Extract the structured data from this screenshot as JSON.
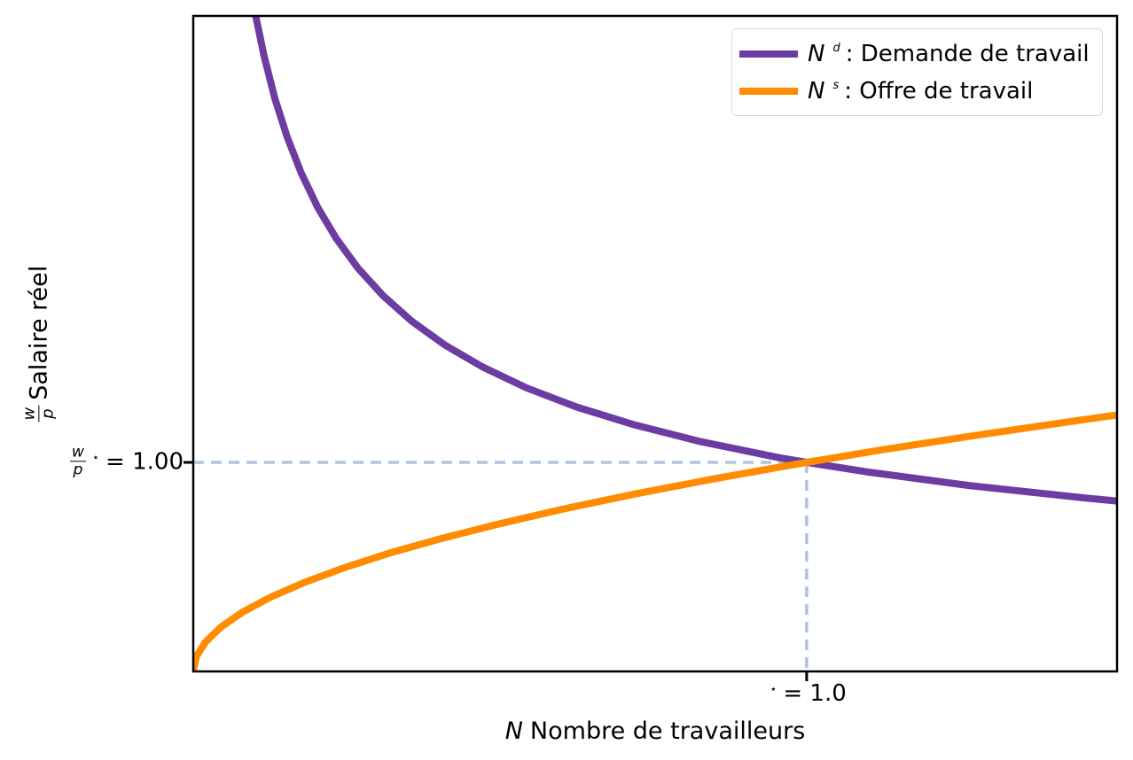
{
  "figure": {
    "background": "#ffffff",
    "text_color": "#000000"
  },
  "axes": {
    "xlabel": {
      "var": "N",
      "text": "Nombre de travailleurs"
    },
    "ylabel": {
      "frac_num": "w",
      "frac_den": "p",
      "text": "Salaire réel"
    },
    "xtick": {
      "sup": "⋆",
      "text": "= 1.0"
    },
    "ytick": {
      "frac_num": "w",
      "frac_den": "p",
      "sup": "⋆",
      "text": "= 1.00"
    }
  },
  "legend": {
    "border_color": "#d8d8d8",
    "entries": [
      {
        "var": "N",
        "sup": "d",
        "text": ": Demande de travail",
        "color": "#6d3ca2"
      },
      {
        "var": "N",
        "sup": "s",
        "text": ": Offre de travail",
        "color": "#ff8c00"
      }
    ]
  },
  "chart_data": {
    "type": "line",
    "title": "",
    "xlabel": "N Nombre de travailleurs",
    "ylabel": "w/p Salaire réel",
    "xlim": [
      0,
      1.506
    ],
    "ylim": [
      0,
      3.136
    ],
    "grid": false,
    "legend_position": "upper right",
    "xtick_labels": [
      "⋆ = 1.0"
    ],
    "ytick_labels": [
      "w/p⋆ = 1.00"
    ],
    "equilibrium": {
      "N_star": 1.0,
      "w_over_p_star": 1.0
    },
    "guide_color": "#b0c4de",
    "line_width": 8,
    "series": [
      {
        "name": "Nᵈ : Demande de travail",
        "color": "#6d3ca2",
        "points": [
          [
            0.098,
            3.19
          ],
          [
            0.115,
            2.949
          ],
          [
            0.133,
            2.742
          ],
          [
            0.153,
            2.557
          ],
          [
            0.176,
            2.384
          ],
          [
            0.203,
            2.219
          ],
          [
            0.233,
            2.072
          ],
          [
            0.269,
            1.928
          ],
          [
            0.309,
            1.799
          ],
          [
            0.356,
            1.676
          ],
          [
            0.41,
            1.562
          ],
          [
            0.472,
            1.456
          ],
          [
            0.543,
            1.357
          ],
          [
            0.625,
            1.265
          ],
          [
            0.72,
            1.179
          ],
          [
            0.828,
            1.099
          ],
          [
            0.953,
            1.024
          ],
          [
            1.0,
            1.0
          ],
          [
            1.097,
            0.955
          ],
          [
            1.263,
            0.89
          ],
          [
            1.453,
            0.83
          ],
          [
            1.506,
            0.815
          ]
        ]
      },
      {
        "name": "Nˢ : Offre de travail",
        "color": "#ff8c00",
        "points": [
          [
            0,
            0
          ],
          [
            0.005,
            0.071
          ],
          [
            0.02,
            0.141
          ],
          [
            0.045,
            0.212
          ],
          [
            0.08,
            0.283
          ],
          [
            0.125,
            0.354
          ],
          [
            0.18,
            0.424
          ],
          [
            0.245,
            0.495
          ],
          [
            0.32,
            0.566
          ],
          [
            0.405,
            0.636
          ],
          [
            0.5,
            0.707
          ],
          [
            0.605,
            0.778
          ],
          [
            0.72,
            0.849
          ],
          [
            0.845,
            0.919
          ],
          [
            0.98,
            0.99
          ],
          [
            1.0,
            1.0
          ],
          [
            1.125,
            1.061
          ],
          [
            1.28,
            1.131
          ],
          [
            1.445,
            1.202
          ],
          [
            1.506,
            1.227
          ]
        ]
      }
    ]
  }
}
